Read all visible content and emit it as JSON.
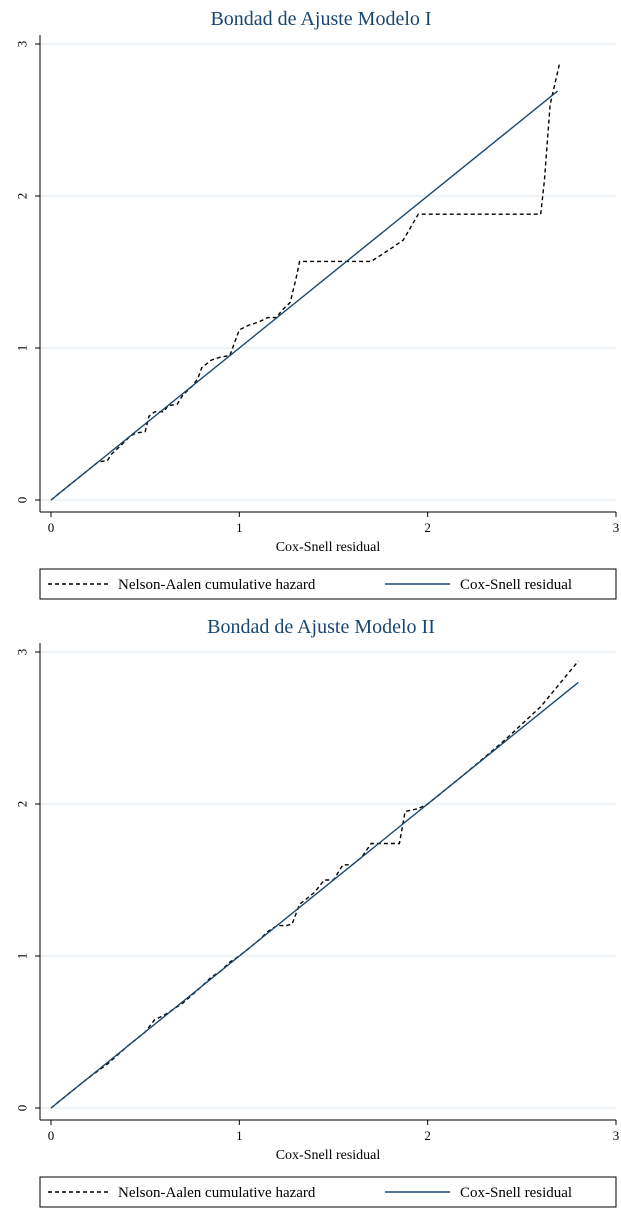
{
  "chart_data": [
    {
      "type": "line",
      "title": "Bondad de Ajuste Modelo I",
      "xlabel": "Cox-Snell residual",
      "ylabel": "",
      "xlim": [
        0,
        3
      ],
      "ylim": [
        0,
        3
      ],
      "x_ticks": [
        "0",
        "1",
        "2",
        "3"
      ],
      "y_ticks": [
        "0",
        "1",
        "2",
        "3"
      ],
      "grid": true,
      "legend_position": "bottom",
      "series": [
        {
          "name": "Nelson-Aalen cumulative hazard",
          "style": "dashed",
          "color": "#000000",
          "x": [
            0.0,
            0.05,
            0.1,
            0.15,
            0.2,
            0.25,
            0.3,
            0.32,
            0.38,
            0.42,
            0.45,
            0.5,
            0.52,
            0.55,
            0.6,
            0.62,
            0.67,
            0.7,
            0.75,
            0.78,
            0.8,
            0.85,
            0.9,
            0.95,
            0.97,
            1.0,
            1.05,
            1.1,
            1.15,
            1.2,
            1.22,
            1.27,
            1.3,
            1.32,
            1.45,
            1.55,
            1.7,
            1.8,
            1.87,
            1.95,
            2.05,
            2.2,
            2.4,
            2.6,
            2.62,
            2.65,
            2.7
          ],
          "y": [
            0.0,
            0.05,
            0.1,
            0.15,
            0.2,
            0.25,
            0.26,
            0.3,
            0.37,
            0.42,
            0.44,
            0.45,
            0.55,
            0.58,
            0.58,
            0.62,
            0.63,
            0.69,
            0.75,
            0.8,
            0.87,
            0.92,
            0.94,
            0.95,
            1.02,
            1.12,
            1.15,
            1.17,
            1.2,
            1.2,
            1.24,
            1.3,
            1.45,
            1.57,
            1.57,
            1.57,
            1.57,
            1.65,
            1.71,
            1.88,
            1.88,
            1.88,
            1.88,
            1.88,
            2.1,
            2.6,
            2.87
          ]
        },
        {
          "name": "Cox-Snell residual",
          "style": "solid",
          "color": "#1a476f",
          "x": [
            0.0,
            2.69
          ],
          "y": [
            0.0,
            2.69
          ]
        }
      ]
    },
    {
      "type": "line",
      "title": "Bondad de Ajuste Modelo II",
      "xlabel": "Cox-Snell residual",
      "ylabel": "",
      "xlim": [
        0,
        3
      ],
      "ylim": [
        0,
        3
      ],
      "x_ticks": [
        "0",
        "1",
        "2",
        "3"
      ],
      "y_ticks": [
        "0",
        "1",
        "2",
        "3"
      ],
      "grid": true,
      "legend_position": "bottom",
      "series": [
        {
          "name": "Nelson-Aalen cumulative hazard",
          "style": "dashed",
          "color": "#000000",
          "x": [
            0.0,
            0.1,
            0.2,
            0.3,
            0.4,
            0.5,
            0.55,
            0.6,
            0.7,
            0.8,
            0.85,
            0.9,
            0.95,
            1.0,
            1.05,
            1.1,
            1.15,
            1.2,
            1.25,
            1.28,
            1.32,
            1.4,
            1.45,
            1.5,
            1.55,
            1.6,
            1.65,
            1.7,
            1.8,
            1.85,
            1.88,
            1.95,
            2.0,
            2.1,
            2.2,
            2.4,
            2.6,
            2.8
          ],
          "y": [
            0.0,
            0.1,
            0.2,
            0.29,
            0.4,
            0.5,
            0.58,
            0.61,
            0.69,
            0.8,
            0.86,
            0.9,
            0.96,
            1.0,
            1.05,
            1.1,
            1.16,
            1.2,
            1.2,
            1.21,
            1.34,
            1.42,
            1.5,
            1.5,
            1.6,
            1.6,
            1.65,
            1.74,
            1.74,
            1.74,
            1.95,
            1.97,
            2.0,
            2.1,
            2.2,
            2.41,
            2.64,
            2.94
          ]
        },
        {
          "name": "Cox-Snell residual",
          "style": "solid",
          "color": "#1a476f",
          "x": [
            0.0,
            2.8
          ],
          "y": [
            0.0,
            2.8
          ]
        }
      ]
    }
  ]
}
